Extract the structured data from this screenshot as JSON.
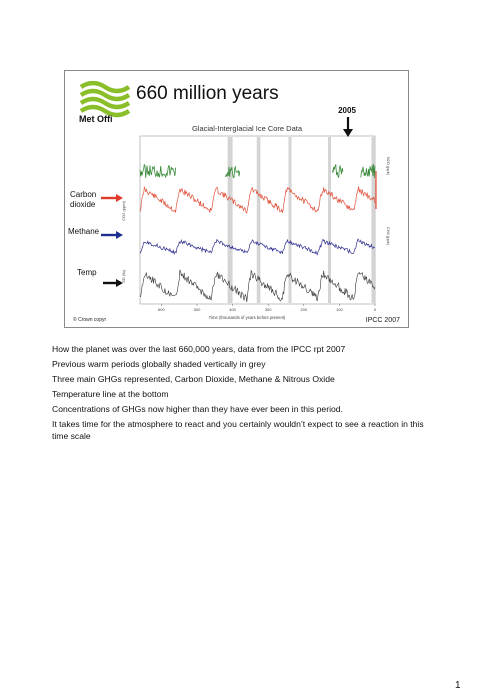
{
  "slide": {
    "title": "660 million years",
    "logo_text": "Met Offi",
    "copyright": "© Crown copyr",
    "source": "IPCC 2007"
  },
  "chart_data": {
    "type": "line",
    "title": "Glacial-Interglacial Ice Core Data",
    "marker_label": "2005",
    "xlabel": "Time (thousands of years before present)",
    "x_ticks": [
      "600",
      "500",
      "400",
      "300",
      "200",
      "100",
      "0"
    ],
    "left_axis_labels": [
      "CO2 (ppm)",
      "δD (‰)"
    ],
    "right_axis_labels": [
      "N2O (ppb)",
      "CH4 (ppb)"
    ],
    "series": [
      {
        "name": "Carbon dioxide",
        "color": "#e0503a"
      },
      {
        "name": "Methane",
        "color": "#2f2f8f"
      },
      {
        "name": "Temp",
        "color": "#333333"
      },
      {
        "name": "",
        "color": "#3a8a3a"
      }
    ],
    "arrow_labels": {
      "co2": "Carbon dioxide",
      "co2_line1": "Carbon",
      "co2_line2": "dioxide",
      "methane": "Methane",
      "temp": "Temp"
    },
    "arrow_colors": {
      "co2": "#e03a2a",
      "methane": "#1f2f8f",
      "temp": "#111111"
    },
    "warm_period_shading": "#cfcfcf"
  },
  "notes": [
    "How the planet was over the last 660,000 years, data from the IPCC rpt 2007",
    "Previous warm periods globally shaded vertically in grey",
    "Three main GHGs represented, Carbon Dioxide, Methane & Nitrous Oxide",
    "Temperature line at the bottom",
    "Concentrations of GHGs now higher than they have ever been in this period.",
    "It takes time for the atmosphere to react and you certainly wouldn’t expect to see a reaction in this time scale"
  ],
  "page_number": "1"
}
